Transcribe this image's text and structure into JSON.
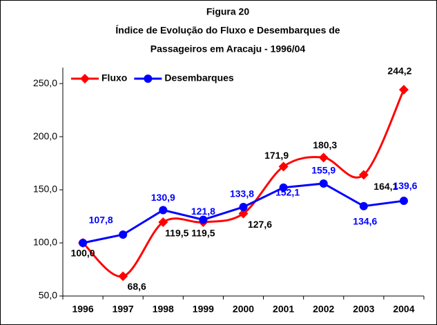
{
  "chart_data": {
    "type": "line",
    "title": [
      "Figura 20",
      "Índice de Evolução do Fluxo e Desembarques de",
      "Passageiros em Aracaju - 1996/04"
    ],
    "categories": [
      "1996",
      "1997",
      "1998",
      "1999",
      "2000",
      "2001",
      "2002",
      "2003",
      "2004"
    ],
    "series": [
      {
        "name": "Fluxo",
        "color": "#ff0000",
        "marker": "diamond",
        "smooth": true,
        "values": [
          100.0,
          68.6,
          119.5,
          119.5,
          127.6,
          171.9,
          180.3,
          164.1,
          244.2
        ],
        "value_labels": [
          "100,0",
          "68,6",
          "119,5",
          "119,5",
          "127,6",
          "171,9",
          "180,3",
          "164,1",
          "244,2"
        ],
        "label_color": "#000000"
      },
      {
        "name": "Desembarques",
        "color": "#0000ff",
        "marker": "circle",
        "smooth": false,
        "values": [
          100.0,
          107.8,
          130.9,
          121.8,
          133.8,
          152.1,
          155.9,
          134.6,
          139.6
        ],
        "value_labels": [
          null,
          "107,8",
          "130,9",
          "121,8",
          "133,8",
          "152,1",
          "155,9",
          "134,6",
          "139,6"
        ],
        "label_color": "#0000ff"
      }
    ],
    "ylim": [
      50,
      265
    ],
    "yticks": [
      {
        "value": 50,
        "label": "50,0"
      },
      {
        "value": 100,
        "label": "100,0"
      },
      {
        "value": 150,
        "label": "150,0"
      },
      {
        "value": 200,
        "label": "200,0"
      },
      {
        "value": 250,
        "label": "250,0"
      }
    ],
    "legend": "top-left",
    "grid": false
  }
}
